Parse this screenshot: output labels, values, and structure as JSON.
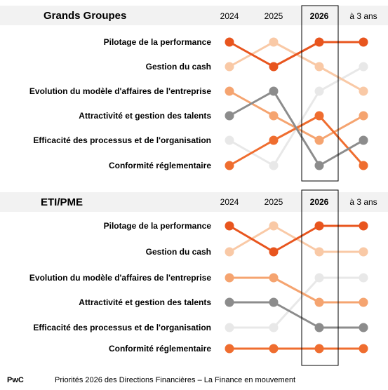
{
  "chart_data": [
    {
      "type": "line",
      "title": "Grands Groupes",
      "x": [
        "2024",
        "2025",
        "2026",
        "à 3 ans"
      ],
      "highlight_x": "2026",
      "row_labels": [
        "Pilotage de la performance",
        "Gestion du cash",
        "Evolution du modèle d'affaires de l'entreprise",
        "Attractivité et gestion des talents",
        "Efficacité des processus et de l'organisation",
        "Conformité réglementaire"
      ],
      "series": [
        {
          "name": "Pilotage de la performance",
          "color": "#e8551e",
          "values": [
            1,
            2,
            1,
            1
          ]
        },
        {
          "name": "Gestion du cash",
          "color": "#f9c9a6",
          "values": [
            2,
            1,
            2,
            3
          ]
        },
        {
          "name": "Evolution du modèle d'affaires de l'entreprise",
          "color": "#e8e8e8",
          "values": [
            5,
            6,
            3,
            2
          ]
        },
        {
          "name": "Attractivité et gestion des talents",
          "color": "#8c8c8c",
          "values": [
            4,
            3,
            6,
            5
          ]
        },
        {
          "name": "Efficacité des processus et de l'organisation",
          "color": "#f5a470",
          "values": [
            3,
            4,
            5,
            4
          ]
        },
        {
          "name": "Conformité réglementaire",
          "color": "#ef6d2f",
          "values": [
            6,
            5,
            4,
            6
          ]
        }
      ]
    },
    {
      "type": "line",
      "title": "ETI/PME",
      "x": [
        "2024",
        "2025",
        "2026",
        "à 3 ans"
      ],
      "highlight_x": "2026",
      "row_labels": [
        "Pilotage de la performance",
        "Gestion du cash",
        "Evolution du modèle d'affaires de l'entreprise",
        "Attractivité et gestion des talents",
        "Efficacité des processus et de l'organisation",
        "Conformité réglementaire"
      ],
      "series": [
        {
          "name": "Pilotage de la performance",
          "color": "#e8551e",
          "values": [
            1,
            2,
            1,
            1
          ]
        },
        {
          "name": "Gestion du cash",
          "color": "#f9c9a6",
          "values": [
            2,
            1,
            2,
            2
          ]
        },
        {
          "name": "Evolution du modèle d'affaires de l'entreprise",
          "color": "#e8e8e8",
          "values": [
            5,
            5,
            3,
            3
          ]
        },
        {
          "name": "Attractivité et gestion des talents",
          "color": "#8c8c8c",
          "values": [
            4,
            4,
            5,
            5
          ]
        },
        {
          "name": "Efficacité des processus et de l'organisation",
          "color": "#f5a470",
          "values": [
            3,
            3,
            4,
            4
          ]
        },
        {
          "name": "Conformité réglementaire",
          "color": "#ef6d2f",
          "values": [
            6,
            6,
            6,
            6
          ]
        }
      ]
    }
  ],
  "footer": {
    "brand": "PwC",
    "text": "Priorités 2026 des Directions Financières – La Finance en mouvement"
  }
}
